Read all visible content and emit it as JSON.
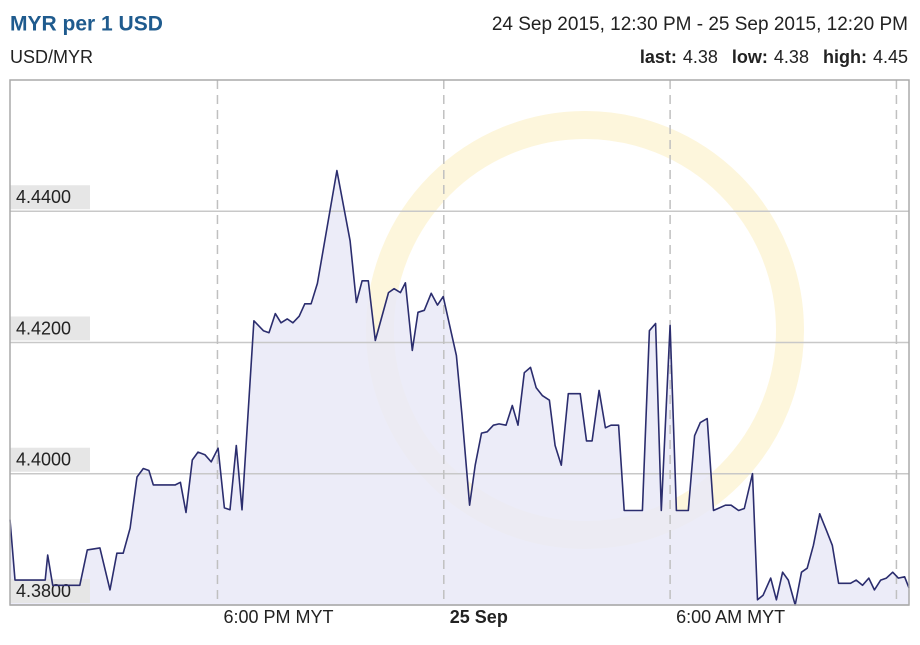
{
  "chart_data": {
    "type": "area-line",
    "title": "MYR per 1 USD",
    "subtitle": "USD/MYR",
    "range_label": "24 Sep 2015, 12:30 PM - 25 Sep 2015, 12:20 PM",
    "stats": [
      {
        "label": "last:",
        "value": 4.38
      },
      {
        "label": "low:",
        "value": 4.38
      },
      {
        "label": "high:",
        "value": 4.45
      }
    ],
    "color": "#2b2d6e",
    "fill": "#e9e9f7",
    "grid": true,
    "xlim": [
      "2015-09-24T12:30",
      "2015-09-25T12:20"
    ],
    "xticks": [
      {
        "value": "2015-09-24T18:00",
        "label": "6:00 PM MYT"
      },
      {
        "value": "2015-09-25T00:00",
        "label": "25 Sep"
      },
      {
        "value": "2015-09-25T06:00",
        "label": "6:00 AM MYT"
      },
      {
        "value": "2015-09-25T12:00",
        "label": null
      }
    ],
    "ylim": [
      4.38,
      4.46
    ],
    "yticks": [
      {
        "value": 4.38,
        "label": "4.3800"
      },
      {
        "value": 4.4,
        "label": "4.4000"
      },
      {
        "value": 4.42,
        "label": "4.4200"
      },
      {
        "value": 4.44,
        "label": "4.4400"
      }
    ],
    "x": [
      "2015-09-24T12:30",
      "2015-09-24T12:38",
      "2015-09-24T13:26",
      "2015-09-24T13:30",
      "2015-09-24T13:38",
      "2015-09-24T14:21",
      "2015-09-24T14:33",
      "2015-09-24T14:53",
      "2015-09-24T15:09",
      "2015-09-24T15:20",
      "2015-09-24T15:30",
      "2015-09-24T15:41",
      "2015-09-24T15:52",
      "2015-09-24T16:02",
      "2015-09-24T16:11",
      "2015-09-24T16:18",
      "2015-09-24T16:53",
      "2015-09-24T17:01",
      "2015-09-24T17:10",
      "2015-09-24T17:20",
      "2015-09-24T17:29",
      "2015-09-24T17:40",
      "2015-09-24T17:50",
      "2015-09-24T18:01",
      "2015-09-24T18:11",
      "2015-09-24T18:20",
      "2015-09-24T18:30",
      "2015-09-24T18:39",
      "2015-09-24T18:58",
      "2015-09-24T19:13",
      "2015-09-24T19:22",
      "2015-09-24T19:32",
      "2015-09-24T19:41",
      "2015-09-24T19:51",
      "2015-09-24T20:00",
      "2015-09-24T20:10",
      "2015-09-24T20:19",
      "2015-09-24T20:29",
      "2015-09-24T20:39",
      "2015-09-24T21:10",
      "2015-09-24T21:31",
      "2015-09-24T21:41",
      "2015-09-24T21:50",
      "2015-09-24T22:00",
      "2015-09-24T22:11",
      "2015-09-24T22:32",
      "2015-09-24T22:41",
      "2015-09-24T22:51",
      "2015-09-24T22:59",
      "2015-09-24T23:10",
      "2015-09-24T23:19",
      "2015-09-24T23:29",
      "2015-09-24T23:40",
      "2015-09-24T23:50",
      "2015-09-24T23:59",
      "2015-09-25T00:20",
      "2015-09-25T00:29",
      "2015-09-25T00:41",
      "2015-09-25T00:50",
      "2015-09-25T01:00",
      "2015-09-25T01:09",
      "2015-09-25T01:19",
      "2015-09-25T01:28",
      "2015-09-25T01:39",
      "2015-09-25T01:49",
      "2015-09-25T01:58",
      "2015-09-25T02:08",
      "2015-09-25T02:18",
      "2015-09-25T02:27",
      "2015-09-25T02:37",
      "2015-09-25T02:48",
      "2015-09-25T02:57",
      "2015-09-25T03:07",
      "2015-09-25T03:18",
      "2015-09-25T03:37",
      "2015-09-25T03:47",
      "2015-09-25T03:56",
      "2015-09-25T04:07",
      "2015-09-25T04:17",
      "2015-09-25T04:26",
      "2015-09-25T04:38",
      "2015-09-25T04:47",
      "2015-09-25T05:16",
      "2015-09-25T05:27",
      "2015-09-25T05:37",
      "2015-09-25T05:46",
      "2015-09-25T06:00",
      "2015-09-25T06:10",
      "2015-09-25T06:29",
      "2015-09-25T06:39",
      "2015-09-25T06:48",
      "2015-09-25T06:59",
      "2015-09-25T07:09",
      "2015-09-25T07:28",
      "2015-09-25T07:37",
      "2015-09-25T07:49",
      "2015-09-25T07:58",
      "2015-09-25T08:11",
      "2015-09-25T08:19",
      "2015-09-25T08:28",
      "2015-09-25T08:40",
      "2015-09-25T08:49",
      "2015-09-25T08:59",
      "2015-09-25T09:08",
      "2015-09-25T09:19",
      "2015-09-25T09:29",
      "2015-09-25T09:38",
      "2015-09-25T09:48",
      "2015-09-25T09:58",
      "2015-09-25T10:09",
      "2015-09-25T10:18",
      "2015-09-25T10:28",
      "2015-09-25T10:37",
      "2015-09-25T10:47",
      "2015-09-25T10:56",
      "2015-09-25T11:06",
      "2015-09-25T11:16",
      "2015-09-25T11:25",
      "2015-09-25T11:35",
      "2015-09-25T11:44",
      "2015-09-25T11:54",
      "2015-09-25T12:03",
      "2015-09-25T12:13",
      "2015-09-25T12:20"
    ],
    "values": [
      4.393,
      4.3838,
      4.3838,
      4.3876,
      4.383,
      4.383,
      4.3884,
      4.3887,
      4.3823,
      4.3879,
      4.3879,
      4.3917,
      4.3995,
      4.4008,
      4.4005,
      4.3983,
      4.3983,
      4.3987,
      4.3941,
      4.4021,
      4.4033,
      4.4029,
      4.4018,
      4.4039,
      4.3948,
      4.3945,
      4.4043,
      4.3945,
      4.4233,
      4.4218,
      4.4215,
      4.4244,
      4.423,
      4.4236,
      4.423,
      4.424,
      4.4259,
      4.4259,
      4.429,
      4.4462,
      4.4355,
      4.4261,
      4.4294,
      4.4294,
      4.4203,
      4.4276,
      4.4282,
      4.4276,
      4.4291,
      4.4188,
      4.4246,
      4.4249,
      4.4275,
      4.4257,
      4.427,
      4.418,
      4.4089,
      4.3952,
      4.4013,
      4.4062,
      4.4064,
      4.4074,
      4.4076,
      4.4074,
      4.4104,
      4.4074,
      4.4154,
      4.4162,
      4.4131,
      4.4119,
      4.4112,
      4.4043,
      4.4013,
      4.4122,
      4.4122,
      4.405,
      4.405,
      4.4127,
      4.407,
      4.4074,
      4.4074,
      4.3944,
      4.3944,
      4.4218,
      4.4229,
      4.3944,
      4.4226,
      4.3944,
      4.3944,
      4.4058,
      4.4078,
      4.4084,
      4.3944,
      4.3952,
      4.3952,
      4.3944,
      4.3947,
      4.4,
      4.3808,
      4.3815,
      4.3841,
      4.3808,
      4.385,
      4.3838,
      4.38,
      4.385,
      4.3856,
      4.3891,
      4.3939,
      4.3913,
      4.3891,
      4.3833,
      4.3833,
      4.3833,
      4.3838,
      4.383,
      4.3841,
      4.3823,
      4.3838,
      4.3841,
      4.385,
      4.3841,
      4.3843,
      4.3826
    ]
  }
}
